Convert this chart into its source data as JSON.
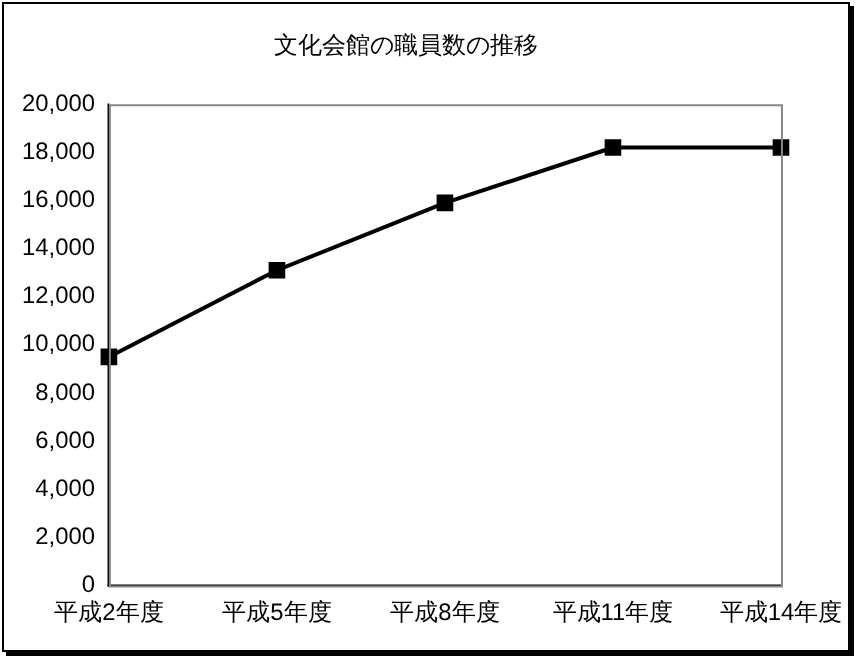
{
  "chart_data": {
    "type": "line",
    "title": "文化会館の職員数の推移",
    "categories": [
      "平成2年度",
      "平成5年度",
      "平成8年度",
      "平成11年度",
      "平成14年度"
    ],
    "series": [
      {
        "color": "#000000",
        "values": [
          9500,
          13100,
          15900,
          18200,
          18200
        ]
      }
    ],
    "ylim": [
      0,
      20000
    ],
    "yticks": [
      {
        "value": 0,
        "label": "0"
      },
      {
        "value": 2000,
        "label": "2,000"
      },
      {
        "value": 4000,
        "label": "4,000"
      },
      {
        "value": 6000,
        "label": "6,000"
      },
      {
        "value": 8000,
        "label": "8,000"
      },
      {
        "value": 10000,
        "label": "10,000"
      },
      {
        "value": 12000,
        "label": "12,000"
      },
      {
        "value": 14000,
        "label": "14,000"
      },
      {
        "value": 16000,
        "label": "16,000"
      },
      {
        "value": 18000,
        "label": "18,000"
      },
      {
        "value": 20000,
        "label": "20,000"
      }
    ],
    "marker": "square",
    "line_style": "solid",
    "grid": false,
    "legend": false
  }
}
